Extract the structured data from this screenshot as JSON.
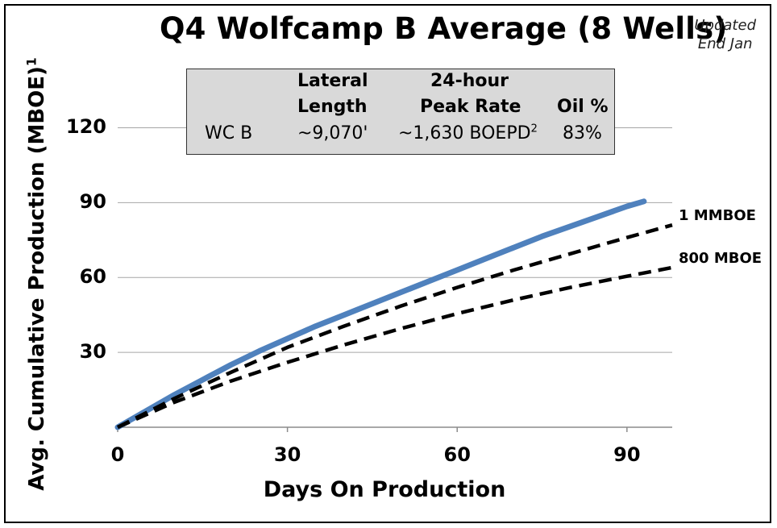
{
  "title": {
    "text": "Q4 Wolfcamp B Average (8 Wells)"
  },
  "note": {
    "line1": "Updated",
    "line2": "End Jan"
  },
  "info_table": {
    "header_row1": [
      "",
      "Lateral",
      "24-hour",
      ""
    ],
    "header_row2": [
      "",
      "Length",
      "Peak Rate",
      "Oil %"
    ],
    "row": {
      "name": "WC B",
      "lateral": "~9,070'",
      "peak_rate": "~1,630 BOEPD",
      "peak_rate_sup": "2",
      "oil": "83%"
    }
  },
  "chart_data": {
    "type": "line",
    "title": "Q4 Wolfcamp B Average (8 Wells)",
    "xlabel": "Days On Production",
    "ylabel": "Avg. Cumulative Production (MBOE)",
    "ylabel_sup": "1",
    "xlim": [
      0,
      98
    ],
    "ylim": [
      0,
      125
    ],
    "xticks": [
      0,
      30,
      60,
      90
    ],
    "yticks": [
      30,
      60,
      90,
      120
    ],
    "grid": "horizontal",
    "series": [
      {
        "name": "",
        "style": "solid",
        "color": "#4f81bd",
        "x": [
          0,
          5,
          10,
          15,
          20,
          25,
          30,
          35,
          40,
          45,
          50,
          55,
          60,
          65,
          70,
          75,
          80,
          85,
          90,
          93
        ],
        "y": [
          0,
          6.5,
          13,
          19,
          25,
          30.5,
          35.5,
          40.5,
          45,
          49.5,
          54,
          58.5,
          63,
          67.5,
          72,
          76.5,
          80.5,
          84.5,
          88.5,
          90.5
        ]
      },
      {
        "name": "1 MMBOE",
        "style": "dashed",
        "color": "#000000",
        "x": [
          0,
          10,
          20,
          30,
          40,
          50,
          60,
          70,
          80,
          90,
          98
        ],
        "y": [
          0,
          11.5,
          22,
          32,
          40.5,
          48.5,
          56,
          63,
          69.5,
          76,
          81
        ]
      },
      {
        "name": "800 MBOE",
        "style": "dashed",
        "color": "#000000",
        "x": [
          0,
          10,
          20,
          30,
          40,
          50,
          60,
          70,
          80,
          90,
          98
        ],
        "y": [
          0,
          10,
          18.5,
          26,
          33,
          39.5,
          45.5,
          51,
          56,
          60.5,
          64
        ]
      }
    ]
  }
}
